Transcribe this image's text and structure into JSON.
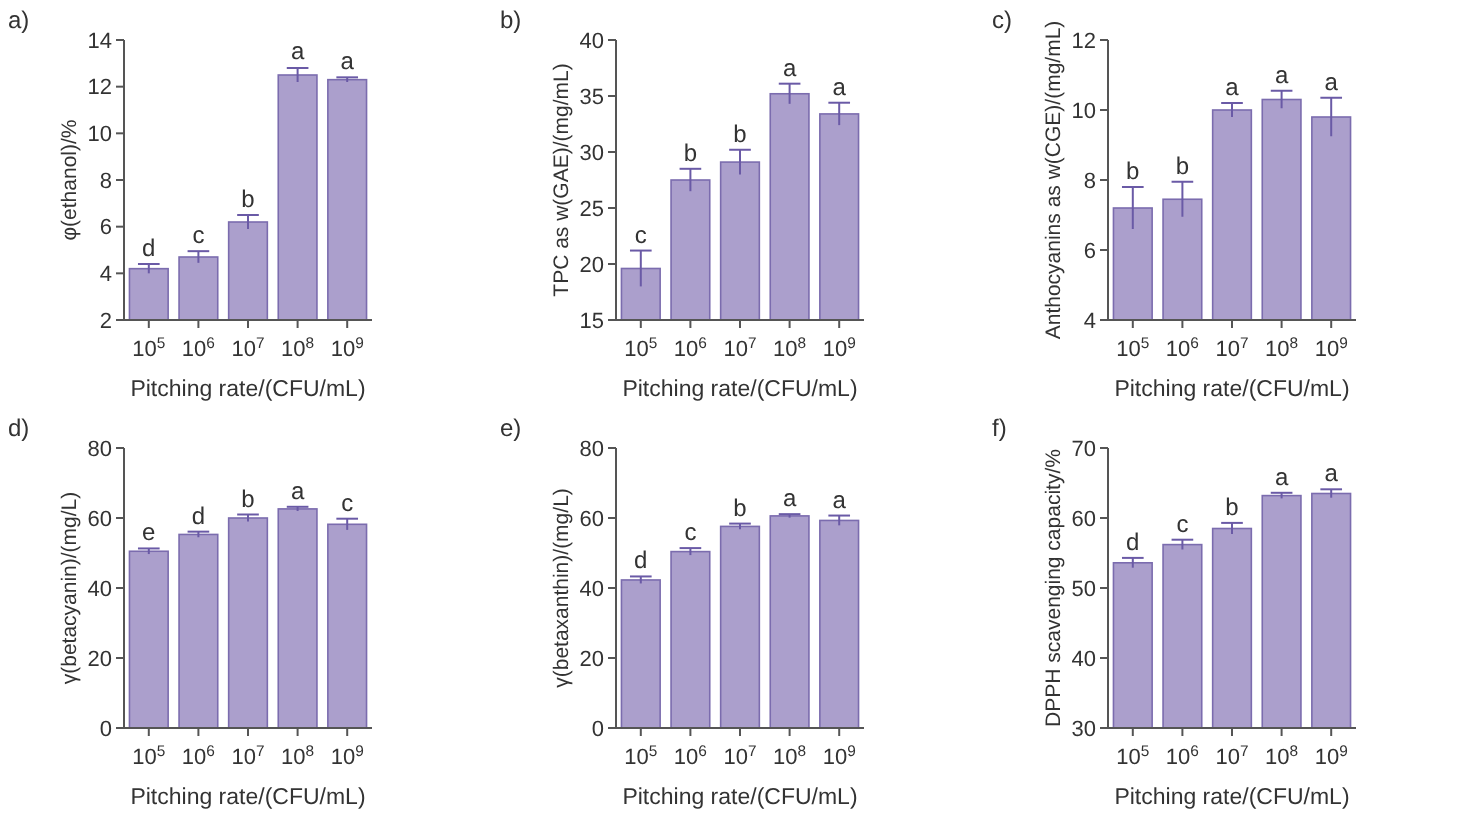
{
  "chart_data": [
    {
      "type": "bar",
      "title": "a)",
      "xlabel": "Pitching rate/(CFU/mL)",
      "ylabel": "φ(ethanol)/%",
      "categories": [
        "10$^{5}$",
        "10$^{6}$",
        "10$^{7}$",
        "10$^{8}$",
        "10$^{9}$"
      ],
      "color": "#ab9fcc",
      "values": [
        4.2,
        4.7,
        6.2,
        12.5,
        12.3
      ],
      "errors": [
        0.2,
        0.25,
        0.3,
        0.3,
        0.1
      ],
      "ylim": [
        2,
        14
      ],
      "yticks": [
        2,
        4,
        6,
        8,
        10,
        12,
        14
      ],
      "grid": false,
      "annotations": [
        {
          "text": "d",
          "x": "10$^{5}$",
          "y": 4.4
        },
        {
          "text": "c",
          "x": "10$^{6}$",
          "y": 4.95
        },
        {
          "text": "b",
          "x": "10$^{7}$",
          "y": 6.5
        },
        {
          "text": "a",
          "x": "10$^{8}$",
          "y": 12.85
        },
        {
          "text": "a",
          "x": "10$^{9}$",
          "y": 12.4
        }
      ]
    },
    {
      "type": "bar",
      "title": "b)",
      "xlabel": "Pitching rate/(CFU/mL)",
      "ylabel": "TPC as w(GAE)/(mg/mL)",
      "categories": [
        "10$^{5}$",
        "10$^{6}$",
        "10$^{7}$",
        "10$^{8}$",
        "10$^{9}$"
      ],
      "color": "#ab9fcc",
      "values": [
        19.6,
        27.5,
        29.1,
        35.2,
        33.4
      ],
      "errors": [
        1.6,
        1.0,
        1.1,
        0.9,
        1.0
      ],
      "ylim": [
        15,
        40
      ],
      "yticks": [
        15,
        20,
        25,
        30,
        35,
        40
      ],
      "grid": false,
      "annotations": [
        {
          "text": "c",
          "x": "10$^{5}$",
          "y": 21.2
        },
        {
          "text": "b",
          "x": "10$^{6}$",
          "y": 28.5
        },
        {
          "text": "b",
          "x": "10$^{7}$",
          "y": 30.2
        },
        {
          "text": "a",
          "x": "10$^{8}$",
          "y": 36.1
        },
        {
          "text": "a",
          "x": "10$^{9}$",
          "y": 34.4
        }
      ]
    },
    {
      "type": "bar",
      "title": "c)",
      "xlabel": "Pitching rate/(CFU/mL)",
      "ylabel": "Anthocyanins as w(CGE)/(mg/mL)",
      "categories": [
        "10$^{5}$",
        "10$^{6}$",
        "10$^{7}$",
        "10$^{8}$",
        "10$^{9}$"
      ],
      "color": "#ab9fcc",
      "values": [
        7.2,
        7.45,
        10.0,
        10.3,
        9.8
      ],
      "errors": [
        0.6,
        0.5,
        0.2,
        0.25,
        0.55
      ],
      "ylim": [
        4,
        12
      ],
      "yticks": [
        4,
        6,
        8,
        10,
        12
      ],
      "grid": false,
      "annotations": [
        {
          "text": "b",
          "x": "10$^{5}$",
          "y": 7.8
        },
        {
          "text": "b",
          "x": "10$^{6}$",
          "y": 7.95
        },
        {
          "text": "a",
          "x": "10$^{7}$",
          "y": 10.2
        },
        {
          "text": "a",
          "x": "10$^{8}$",
          "y": 10.55
        },
        {
          "text": "a",
          "x": "10$^{9}$",
          "y": 10.35
        }
      ]
    },
    {
      "type": "bar",
      "title": "d)",
      "xlabel": "Pitching rate/(CFU/mL)",
      "ylabel": "γ(betacyanin)/(mg/L)",
      "categories": [
        "10$^{5}$",
        "10$^{6}$",
        "10$^{7}$",
        "10$^{8}$",
        "10$^{9}$"
      ],
      "color": "#ab9fcc",
      "values": [
        50.5,
        55.3,
        60.0,
        62.6,
        58.2
      ],
      "errors": [
        0.8,
        0.8,
        1.0,
        0.6,
        1.6
      ],
      "ylim": [
        0,
        80
      ],
      "yticks": [
        0,
        20,
        40,
        60,
        80
      ],
      "grid": false,
      "annotations": [
        {
          "text": "e",
          "x": "10$^{5}$",
          "y": 51.3
        },
        {
          "text": "d",
          "x": "10$^{6}$",
          "y": 56.1
        },
        {
          "text": "b",
          "x": "10$^{7}$",
          "y": 61
        },
        {
          "text": "a",
          "x": "10$^{8}$",
          "y": 63.2
        },
        {
          "text": "c",
          "x": "10$^{9}$",
          "y": 59.8
        }
      ]
    },
    {
      "type": "bar",
      "title": "e)",
      "xlabel": "Pitching rate/(CFU/mL)",
      "ylabel": "γ(betaxanthin)/(mg/L)",
      "categories": [
        "10$^{5}$",
        "10$^{6}$",
        "10$^{7}$",
        "10$^{8}$",
        "10$^{9}$"
      ],
      "color": "#ab9fcc",
      "values": [
        42.3,
        50.4,
        57.6,
        60.6,
        59.3
      ],
      "errors": [
        1.0,
        1.0,
        0.8,
        0.5,
        1.4
      ],
      "ylim": [
        0,
        80
      ],
      "yticks": [
        0,
        20,
        40,
        60,
        80
      ],
      "grid": false,
      "annotations": [
        {
          "text": "d",
          "x": "10$^{5}$",
          "y": 43.3
        },
        {
          "text": "c",
          "x": "10$^{6}$",
          "y": 51.4
        },
        {
          "text": "b",
          "x": "10$^{7}$",
          "y": 58.4
        },
        {
          "text": "a",
          "x": "10$^{8}$",
          "y": 61.1
        },
        {
          "text": "a",
          "x": "10$^{9}$",
          "y": 60.7
        }
      ]
    },
    {
      "type": "bar",
      "title": "f)",
      "xlabel": "Pitching rate/(CFU/mL)",
      "ylabel": "DPPH scavenging capacity/%",
      "categories": [
        "10$^{5}$",
        "10$^{6}$",
        "10$^{7}$",
        "10$^{8}$",
        "10$^{9}$"
      ],
      "color": "#ab9fcc",
      "values": [
        53.6,
        56.2,
        58.5,
        63.2,
        63.5
      ],
      "errors": [
        0.7,
        0.7,
        0.8,
        0.4,
        0.6
      ],
      "ylim": [
        30,
        70
      ],
      "yticks": [
        30,
        40,
        50,
        60,
        70
      ],
      "grid": false,
      "annotations": [
        {
          "text": "d",
          "x": "10$^{5}$",
          "y": 54.3
        },
        {
          "text": "c",
          "x": "10$^{6}$",
          "y": 56.9
        },
        {
          "text": "b",
          "x": "10$^{7}$",
          "y": 59.3
        },
        {
          "text": "a",
          "x": "10$^{8}$",
          "y": 63.6
        },
        {
          "text": "a",
          "x": "10$^{9}$",
          "y": 64.1
        }
      ]
    }
  ]
}
